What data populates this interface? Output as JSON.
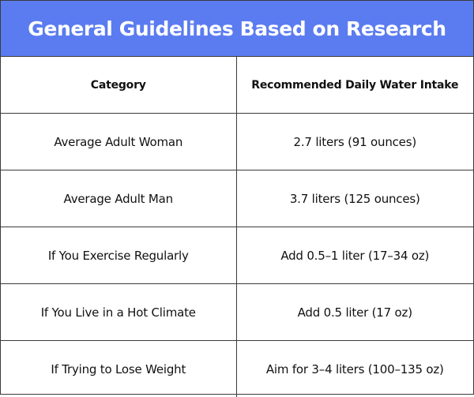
{
  "title": "General Guidelines Based on Research",
  "colors": {
    "banner": "#5b7cf0",
    "banner_text": "#ffffff",
    "border": "#3b3b3b",
    "text": "#111111"
  },
  "table": {
    "headers": [
      "Category",
      "Recommended Daily Water Intake"
    ],
    "rows": [
      [
        "Average Adult Woman",
        "2.7 liters (91 ounces)"
      ],
      [
        "Average Adult Man",
        "3.7 liters (125 ounces)"
      ],
      [
        "If You Exercise Regularly",
        "Add 0.5–1 liter (17–34 oz)"
      ],
      [
        "If You Live in a Hot Climate",
        "Add 0.5 liter (17 oz)"
      ],
      [
        "If Trying to Lose Weight",
        "Aim for 3–4 liters (100–135 oz)"
      ]
    ]
  }
}
